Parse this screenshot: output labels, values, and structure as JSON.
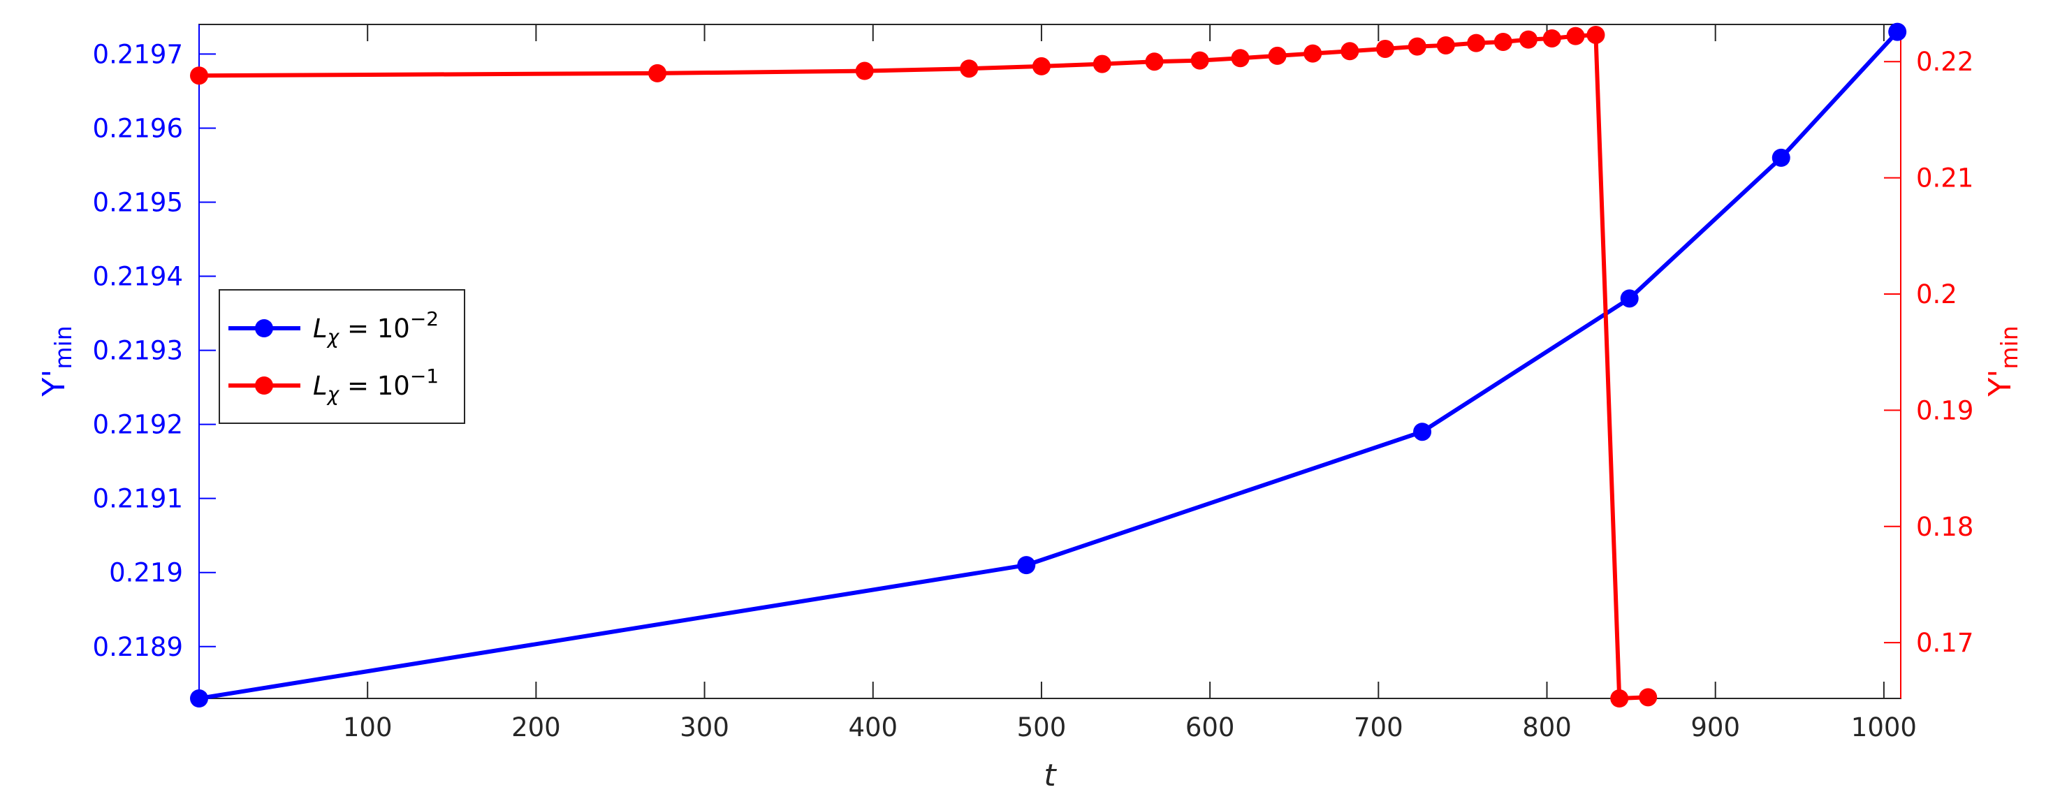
{
  "chart_data": {
    "type": "line",
    "title": "",
    "xlabel": "t",
    "xlim": [
      0,
      1010
    ],
    "x_ticks": [
      "100",
      "200",
      "300",
      "400",
      "500",
      "600",
      "700",
      "800",
      "900",
      "1000"
    ],
    "y_left": {
      "label_main": "Y'",
      "label_sub": "min",
      "color": "#0000ff",
      "ylim": [
        0.21883,
        0.21974
      ],
      "ticks": [
        "0.2189",
        "0.219",
        "0.2191",
        "0.2192",
        "0.2193",
        "0.2194",
        "0.2195",
        "0.2196",
        "0.2197"
      ]
    },
    "y_right": {
      "label_main": "Y'",
      "label_sub": "min",
      "color": "#ff0000",
      "ylim": [
        0.1652,
        0.2232
      ],
      "ticks": [
        "0.17",
        "0.18",
        "0.19",
        "0.2",
        "0.21",
        "0.22"
      ]
    },
    "legend_position": "left",
    "series": [
      {
        "name": "L_χ = 10^-2",
        "legend_base": "L",
        "legend_subscript": "χ",
        "legend_mid": " = 10",
        "legend_exp": "−2",
        "axis": "left",
        "color": "#0000ff",
        "x": [
          0,
          491,
          726,
          849,
          939,
          1008
        ],
        "y": [
          0.21883,
          0.21901,
          0.21919,
          0.21937,
          0.21956,
          0.21973
        ]
      },
      {
        "name": "L_χ = 10^-1",
        "legend_base": "L",
        "legend_subscript": "χ",
        "legend_mid": " = 10",
        "legend_exp": "−1",
        "axis": "right",
        "color": "#ff0000",
        "x": [
          0,
          272,
          395,
          457,
          500,
          536,
          567,
          594,
          618,
          640,
          661,
          683,
          704,
          723,
          740,
          758,
          774,
          789,
          803,
          817,
          829,
          843,
          860
        ],
        "y": [
          0.2188,
          0.219,
          0.2192,
          0.2194,
          0.2196,
          0.2198,
          0.22,
          0.2201,
          0.2203,
          0.2205,
          0.2207,
          0.2209,
          0.2211,
          0.2213,
          0.2214,
          0.2216,
          0.2217,
          0.2219,
          0.222,
          0.2222,
          0.2223,
          0.1652,
          0.1653
        ]
      }
    ]
  }
}
